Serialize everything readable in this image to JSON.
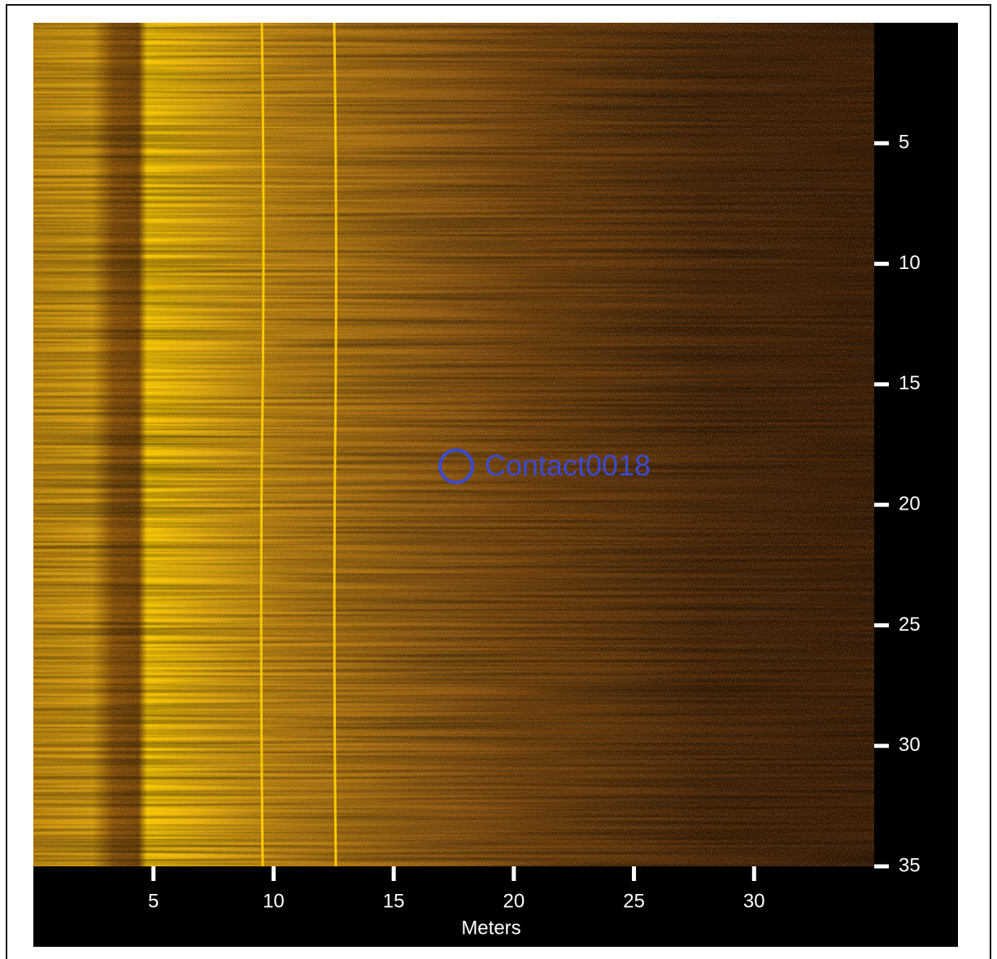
{
  "chart_data": {
    "type": "sonar",
    "xlabel": "Meters",
    "xlim": [
      0,
      35
    ],
    "ylim": [
      0,
      35
    ],
    "y_inverted": true,
    "xticks": [
      5,
      10,
      15,
      20,
      25,
      30
    ],
    "yticks": [
      5,
      10,
      15,
      20,
      25,
      30,
      35
    ],
    "annotations": [
      {
        "text": "Contact0018",
        "x": 17.6,
        "y": 18.4,
        "color": "#3a4bd0"
      }
    ]
  }
}
